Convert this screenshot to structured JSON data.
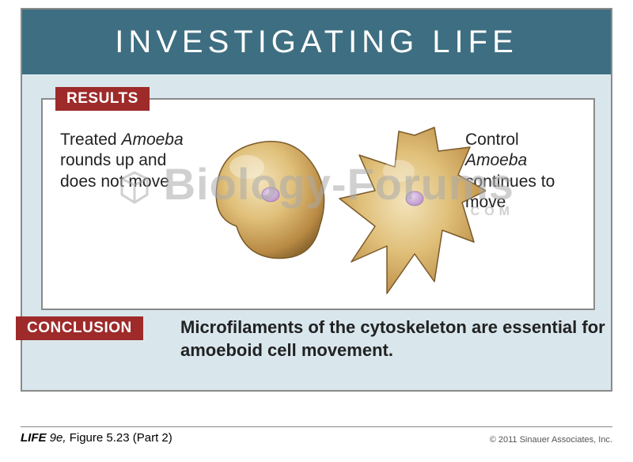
{
  "header": {
    "title": "INVESTIGATING LIFE"
  },
  "results": {
    "badge": "RESULTS",
    "left_caption_html": "Treated <i>Amoeba</i> rounds up and does not move",
    "right_caption_html": "Control <i>Amoeba</i> continues to move",
    "amoebas": {
      "round": {
        "fill_light": "#e8cf99",
        "fill_mid": "#cda560",
        "fill_dark": "#9c7636",
        "nucleus": "#c9a6d6"
      },
      "spread": {
        "fill_light": "#e8cf99",
        "fill_mid": "#cda560",
        "fill_dark": "#9c7636",
        "nucleus": "#c9a6d6"
      }
    }
  },
  "conclusion": {
    "badge": "CONCLUSION",
    "text": "Microfilaments of the cytoskeleton are essential for amoeboid cell movement."
  },
  "colors": {
    "header_bg": "#3e6e81",
    "frame_bg": "#d9e7ed",
    "badge_bg": "#9e2a2a",
    "border": "#8a8a8a"
  },
  "watermark": {
    "main": "Biology-Forums",
    "sub": ".COM"
  },
  "footer": {
    "book": "LIFE",
    "edition": "9e,",
    "figure": "Figure 5.23 (Part 2)",
    "copyright": "© 2011 Sinauer Associates, Inc."
  }
}
